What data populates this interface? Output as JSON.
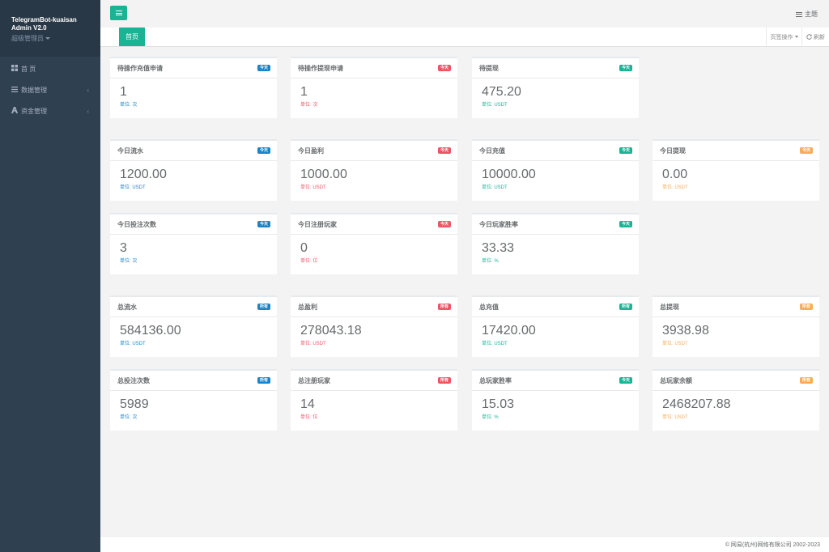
{
  "sidebar": {
    "brand_line1": "TelegramBot-kuaisan",
    "brand_line2": "Admin V2.0",
    "role": "超级管理员",
    "items": [
      {
        "icon": "grid-icon",
        "label": "首 页"
      },
      {
        "icon": "list-icon",
        "label": "数据管理",
        "arrow": "‹"
      },
      {
        "icon": "money-icon",
        "label": "资金管理",
        "arrow": "‹"
      }
    ]
  },
  "header": {
    "theme_label": "主题"
  },
  "tabs": {
    "home": "首页",
    "ops": "页签操作",
    "refresh": "刷新"
  },
  "cards": [
    {
      "title": "待操作充值申请",
      "badge": "今天",
      "color": "blue",
      "value": "1",
      "unit": "单位: 次"
    },
    {
      "title": "待操作提现申请",
      "badge": "今天",
      "color": "red",
      "value": "1",
      "unit": "单位: 次"
    },
    {
      "title": "待提现",
      "badge": "今天",
      "color": "green",
      "value": "475.20",
      "unit": "单位: USDT"
    },
    {
      "title": "今日流水",
      "badge": "今天",
      "color": "blue",
      "value": "1200.00",
      "unit": "单位: USDT"
    },
    {
      "title": "今日盈利",
      "badge": "今天",
      "color": "red",
      "value": "1000.00",
      "unit": "单位: USDT"
    },
    {
      "title": "今日充值",
      "badge": "今天",
      "color": "green",
      "value": "10000.00",
      "unit": "单位: USDT"
    },
    {
      "title": "今日提现",
      "badge": "今天",
      "color": "yellow",
      "value": "0.00",
      "unit": "单位: USDT"
    },
    {
      "title": "今日投注次数",
      "badge": "今天",
      "color": "blue",
      "value": "3",
      "unit": "单位: 次"
    },
    {
      "title": "今日注册玩家",
      "badge": "今天",
      "color": "red",
      "value": "0",
      "unit": "单位: 位"
    },
    {
      "title": "今日玩家胜率",
      "badge": "今天",
      "color": "green",
      "value": "33.33",
      "unit": "单位: %"
    },
    {
      "title": "总流水",
      "badge": "所有",
      "color": "blue",
      "value": "584136.00",
      "unit": "单位: USDT"
    },
    {
      "title": "总盈利",
      "badge": "所有",
      "color": "red",
      "value": "278043.18",
      "unit": "单位: USDT"
    },
    {
      "title": "总充值",
      "badge": "所有",
      "color": "green",
      "value": "17420.00",
      "unit": "单位: USDT"
    },
    {
      "title": "总提现",
      "badge": "所有",
      "color": "yellow",
      "value": "3938.98",
      "unit": "单位: USDT"
    },
    {
      "title": "总投注次数",
      "badge": "所有",
      "color": "blue",
      "value": "5989",
      "unit": "单位: 次"
    },
    {
      "title": "总注册玩家",
      "badge": "所有",
      "color": "red",
      "value": "14",
      "unit": "单位: 位"
    },
    {
      "title": "总玩家胜率",
      "badge": "今天",
      "color": "green",
      "value": "15.03",
      "unit": "单位: %"
    },
    {
      "title": "总玩家余额",
      "badge": "所有",
      "color": "yellow",
      "value": "2468207.88",
      "unit": "单位: USDT"
    }
  ],
  "footer": {
    "copyright": "© 网易(杭州)网络有限公司 2002-2023"
  }
}
